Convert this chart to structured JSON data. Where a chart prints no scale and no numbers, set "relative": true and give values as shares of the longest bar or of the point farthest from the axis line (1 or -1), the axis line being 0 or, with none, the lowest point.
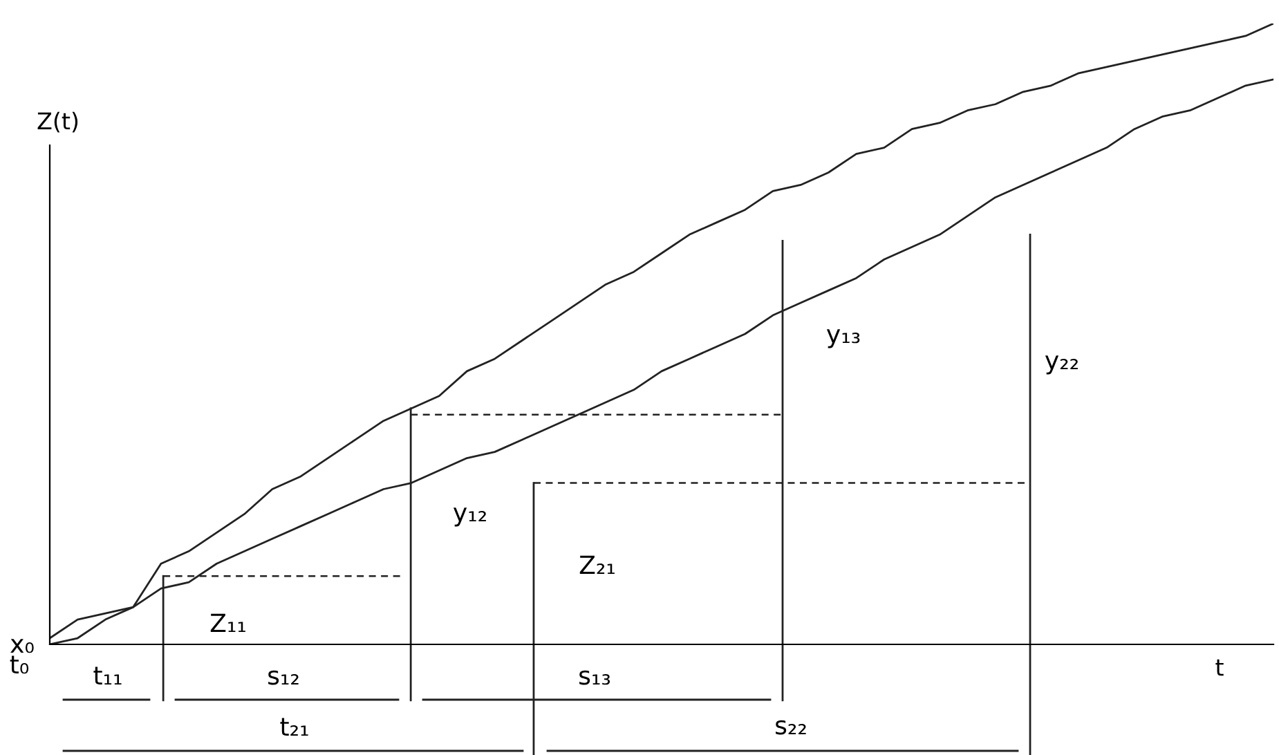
{
  "chart_data": {
    "type": "line",
    "relative": true,
    "xlabel": "t",
    "ylabel": "Z(t)",
    "categories": [
      null,
      null,
      null,
      null,
      null,
      null,
      null,
      null,
      null,
      null,
      null,
      null,
      null,
      null,
      null,
      null,
      null,
      null,
      null,
      null,
      null,
      null,
      null,
      null,
      null,
      null,
      null,
      null,
      null,
      null,
      null,
      null,
      null,
      null,
      null,
      null,
      null,
      null,
      null,
      null,
      null,
      null,
      null,
      null,
      null
    ],
    "series": [
      {
        "color": "#222222",
        "values": [
          0.01,
          0.04,
          0.05,
          0.06,
          0.13,
          0.15,
          0.18,
          0.21,
          0.25,
          0.27,
          0.3,
          0.33,
          0.36,
          0.38,
          0.4,
          0.44,
          0.46,
          0.49,
          0.52,
          0.55,
          0.58,
          0.6,
          0.63,
          0.66,
          0.68,
          0.7,
          0.73,
          0.74,
          0.76,
          0.79,
          0.8,
          0.83,
          0.84,
          0.86,
          0.87,
          0.89,
          0.9,
          0.92,
          0.93,
          0.94,
          0.95,
          0.96,
          0.97,
          0.98,
          1.0
        ]
      },
      {
        "color": "#222222",
        "values": [
          0.0,
          0.01,
          0.04,
          0.06,
          0.09,
          0.1,
          0.13,
          0.15,
          0.17,
          0.19,
          0.21,
          0.23,
          0.25,
          0.26,
          0.28,
          0.3,
          0.31,
          0.33,
          0.35,
          0.37,
          0.39,
          0.41,
          0.44,
          0.46,
          0.48,
          0.5,
          0.53,
          0.55,
          0.57,
          0.59,
          0.62,
          0.64,
          0.66,
          0.69,
          0.72,
          0.74,
          0.76,
          0.78,
          0.8,
          0.83,
          0.85,
          0.86,
          0.88,
          0.9,
          0.91
        ]
      }
    ],
    "annotations": [
      "x₀",
      "t₀",
      "t₁₁",
      "s₁₂",
      "s₁₃",
      "t₂₁",
      "s₂₂",
      "Z₁₁",
      "Z₂₁",
      "y₁₂",
      "y₁₃",
      "y₂₂"
    ],
    "ref_lines": [
      {
        "axis": "y",
        "value": 0.11,
        "line_style": "dashed"
      },
      {
        "axis": "y",
        "value": 0.37,
        "line_style": "dashed"
      },
      {
        "axis": "y",
        "value": 0.26,
        "line_style": "dashed"
      }
    ],
    "line_style": "solid",
    "marker": "none",
    "grid": false,
    "legend": false
  }
}
